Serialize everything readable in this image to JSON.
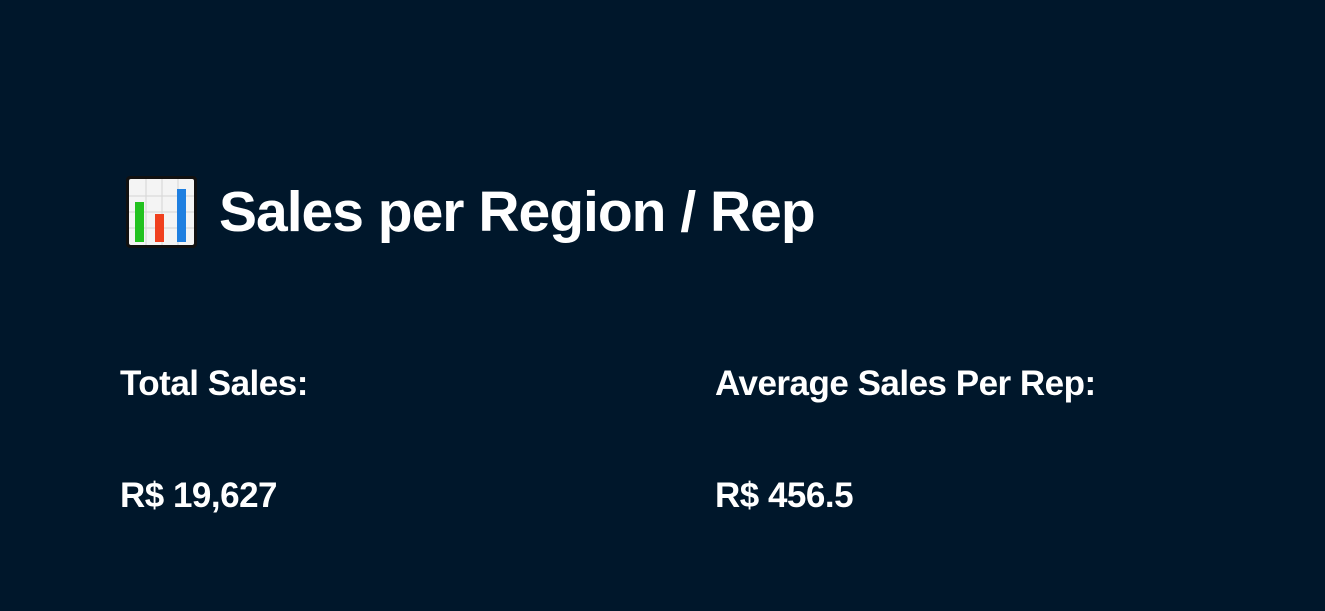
{
  "header": {
    "icon": "bar-chart-icon",
    "title": "Sales per Region / Rep"
  },
  "metrics": [
    {
      "label": "Total Sales:",
      "value": "R$ 19,627"
    },
    {
      "label": "Average Sales Per Rep:",
      "value": "R$ 456.5"
    }
  ],
  "colors": {
    "background": "#00172b",
    "text": "#ffffff",
    "icon_bar_green": "#22c21f",
    "icon_bar_red": "#f0401e",
    "icon_bar_blue": "#1f7fe0"
  }
}
